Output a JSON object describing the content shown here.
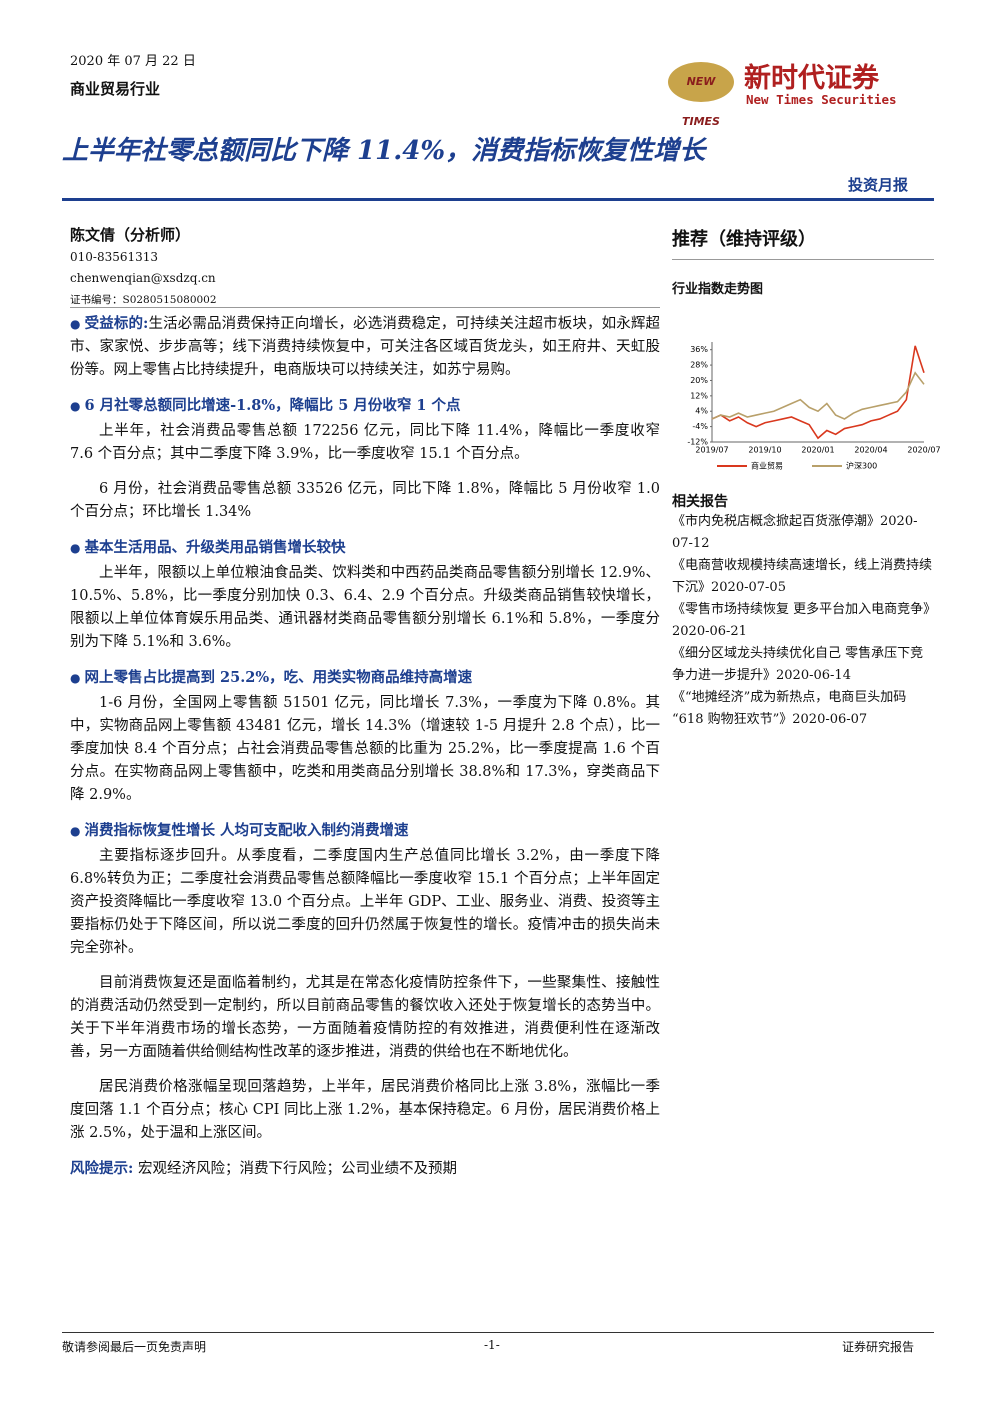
{
  "header": {
    "date": "2020 年 07 月 22 日",
    "industry": "商业贸易行业",
    "logo_mark": "NEW TIMES",
    "logo_cn": "新时代证券",
    "logo_en": "New Times Securities",
    "title": "上半年社零总额同比下降 11.4%，消费指标恢复性增长",
    "report_type": "投资月报"
  },
  "analyst": {
    "name": "陈文倩（分析师）",
    "phone": "010-83561313",
    "email": "chenwenqian@xsdzq.cn",
    "cert": "证书编号：S0280515080002"
  },
  "intro": {
    "label": "受益标的:",
    "text": "生活必需品消费保持正向增长，必选消费稳定，可持续关注超市板块，如永辉超市、家家悦、步步高等；线下消费持续恢复中，可关注各区域百货龙头，如王府井、天虹股份等。网上零售占比持续提升，电商版块可以持续关注，如苏宁易购。"
  },
  "sections": [
    {
      "heading": "6 月社零总额同比增速-1.8%，降幅比 5 月份收窄 1 个点",
      "paragraphs": [
        "上半年，社会消费品零售总额 172256 亿元，同比下降 11.4%，降幅比一季度收窄 7.6 个百分点；其中二季度下降 3.9%，比一季度收窄 15.1 个百分点。",
        "6 月份，社会消费品零售总额 33526 亿元，同比下降 1.8%，降幅比 5 月份收窄 1.0 个百分点；环比增长 1.34%"
      ]
    },
    {
      "heading": "基本生活用品、升级类用品销售增长较快",
      "paragraphs": [
        "上半年，限额以上单位粮油食品类、饮料类和中西药品类商品零售额分别增长 12.9%、10.5%、5.8%，比一季度分别加快 0.3、6.4、2.9 个百分点。升级类商品销售较快增长，限额以上单位体育娱乐用品类、通讯器材类商品零售额分别增长 6.1%和 5.8%，一季度分别为下降 5.1%和 3.6%。"
      ]
    },
    {
      "heading": "网上零售占比提高到 25.2%，吃、用类实物商品维持高增速",
      "paragraphs": [
        "1-6 月份，全国网上零售额 51501 亿元，同比增长 7.3%，一季度为下降 0.8%。其中，实物商品网上零售额 43481 亿元，增长 14.3%（增速较 1-5 月提升 2.8 个点），比一季度加快 8.4 个百分点；占社会消费品零售总额的比重为 25.2%，比一季度提高 1.6 个百分点。在实物商品网上零售额中，吃类和用类商品分别增长 38.8%和 17.3%，穿类商品下降 2.9%。"
      ]
    },
    {
      "heading": "消费指标恢复性增长 人均可支配收入制约消费增速",
      "paragraphs": [
        "主要指标逐步回升。从季度看，二季度国内生产总值同比增长 3.2%，由一季度下降 6.8%转负为正；二季度社会消费品零售总额降幅比一季度收窄 15.1 个百分点；上半年固定资产投资降幅比一季度收窄 13.0 个百分点。上半年 GDP、工业、服务业、消费、投资等主要指标仍处于下降区间，所以说二季度的回升仍然属于恢复性的增长。疫情冲击的损失尚未完全弥补。",
        "目前消费恢复还是面临着制约，尤其是在常态化疫情防控条件下，一些聚集性、接触性的消费活动仍然受到一定制约，所以目前商品零售的餐饮收入还处于恢复增长的态势当中。关于下半年消费市场的增长态势，一方面随着疫情防控的有效推进，消费便利性在逐渐改善，另一方面随着供给侧结构性改革的逐步推进，消费的供给也在不断地优化。",
        "居民消费价格涨幅呈现回落趋势，上半年，居民消费价格同比上涨 3.8%，涨幅比一季度回落 1.1 个百分点；核心 CPI 同比上涨 1.2%，基本保持稳定。6 月份，居民消费价格上涨 2.5%，处于温和上涨区间。"
      ]
    }
  ],
  "risk": {
    "label": "风险提示:",
    "text": "宏观经济风险；消费下行风险；公司业绩不及预期"
  },
  "sidebar": {
    "rating": "推荐（维持评级）",
    "chart_title": "行业指数走势图",
    "chart": {
      "type": "line",
      "categories": [
        "2019/07",
        null,
        null,
        null,
        null,
        null,
        "2019/10",
        null,
        null,
        null,
        null,
        null,
        "2020/01",
        null,
        null,
        null,
        null,
        null,
        "2020/04",
        null,
        null,
        null,
        null,
        null,
        "2020/07"
      ],
      "series": [
        {
          "name": "商业贸易",
          "color": "#d9381e",
          "values": [
            0,
            2,
            -1,
            1,
            -2,
            -4,
            -2,
            -1,
            0,
            1,
            -1,
            -3,
            -10,
            -6,
            -8,
            -5,
            -4,
            -3,
            -1,
            0,
            2,
            4,
            10,
            38,
            24
          ]
        },
        {
          "name": "沪深300",
          "color": "#b8a06a",
          "values": [
            0,
            2,
            1,
            3,
            1,
            2,
            3,
            4,
            6,
            8,
            10,
            6,
            4,
            8,
            2,
            0,
            3,
            5,
            6,
            7,
            8,
            9,
            14,
            24,
            18
          ]
        }
      ],
      "ylim": [
        -12,
        40
      ],
      "yticks": [
        {
          "value": -12,
          "label": "-12%"
        },
        {
          "value": -4,
          "label": "-4%"
        },
        {
          "value": 4,
          "label": "4%"
        },
        {
          "value": 12,
          "label": "12%"
        },
        {
          "value": 20,
          "label": "20%"
        },
        {
          "value": 28,
          "label": "28%"
        },
        {
          "value": 36,
          "label": "36%"
        }
      ]
    },
    "related_title": "相关报告",
    "related": [
      {
        "title": "《市内免税店概念掀起百货涨停潮》",
        "date": "2020-07-12"
      },
      {
        "title": "《电商营收规模持续高速增长，线上消费持续下沉》",
        "date": "2020-07-05"
      },
      {
        "title": "《零售市场持续恢复 更多平台加入电商竞争》",
        "date": "2020-06-21"
      },
      {
        "title": "《细分区域龙头持续优化自己 零售承压下竞争力进一步提升》",
        "date": "2020-06-14"
      },
      {
        "title": "《“地摊经济”成为新热点，电商巨头加码“618 购物狂欢节”》",
        "date": "2020-06-07"
      }
    ]
  },
  "footer": {
    "left": "敬请参阅最后一页免责声明",
    "center": "-1-",
    "right": "证券研究报告"
  }
}
